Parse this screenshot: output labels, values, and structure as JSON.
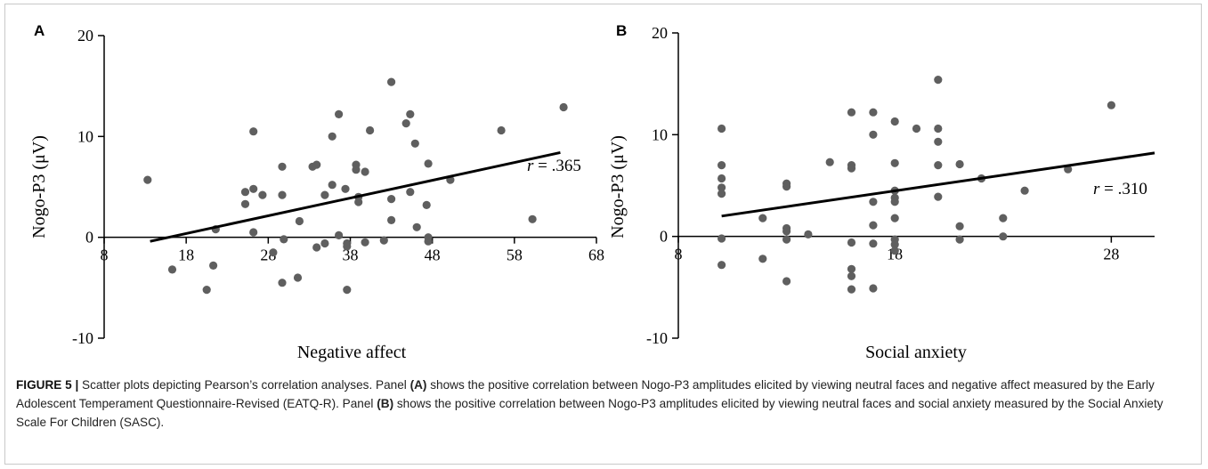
{
  "chart_data": [
    {
      "type": "scatter",
      "panel_label": "A",
      "xlabel": "Negative affect",
      "ylabel": "Nogo-P3 (μV)",
      "xlim": [
        8,
        68
      ],
      "ylim": [
        -10,
        20
      ],
      "x_ticks": [
        "8",
        "18",
        "28",
        "38",
        "48",
        "58",
        "68"
      ],
      "y_ticks": [
        "-10",
        "0",
        "10",
        "20"
      ],
      "annotation": {
        "r_symbol": "r",
        "r_value": "= .365"
      },
      "trendline": {
        "x": [
          13.6,
          63.6
        ],
        "y": [
          -0.4,
          8.4
        ]
      },
      "points": [
        [
          13.3,
          5.7
        ],
        [
          16.3,
          -3.2
        ],
        [
          20.5,
          -5.2
        ],
        [
          21.3,
          -2.8
        ],
        [
          21.6,
          0.8
        ],
        [
          25.2,
          4.5
        ],
        [
          25.2,
          3.3
        ],
        [
          26.2,
          4.8
        ],
        [
          26.2,
          10.5
        ],
        [
          26.2,
          0.5
        ],
        [
          27.3,
          4.2
        ],
        [
          28.6,
          -1.5
        ],
        [
          29.7,
          7.0
        ],
        [
          29.7,
          4.2
        ],
        [
          29.7,
          -4.5
        ],
        [
          29.9,
          -0.2
        ],
        [
          31.6,
          -4.0
        ],
        [
          31.8,
          1.6
        ],
        [
          33.4,
          7.0
        ],
        [
          33.9,
          7.2
        ],
        [
          33.9,
          -1.0
        ],
        [
          34.9,
          -0.6
        ],
        [
          34.9,
          4.2
        ],
        [
          35.8,
          10.0
        ],
        [
          35.8,
          5.2
        ],
        [
          36.6,
          12.2
        ],
        [
          36.6,
          0.2
        ],
        [
          37.4,
          4.8
        ],
        [
          37.6,
          -0.6
        ],
        [
          37.6,
          -0.9
        ],
        [
          37.6,
          -5.2
        ],
        [
          38.7,
          7.2
        ],
        [
          38.7,
          6.7
        ],
        [
          39.0,
          4.0
        ],
        [
          39.0,
          3.5
        ],
        [
          39.8,
          6.5
        ],
        [
          39.8,
          -0.5
        ],
        [
          40.4,
          10.6
        ],
        [
          42.1,
          -0.3
        ],
        [
          43.0,
          15.4
        ],
        [
          43.0,
          3.8
        ],
        [
          43.0,
          1.7
        ],
        [
          44.8,
          11.3
        ],
        [
          45.3,
          12.2
        ],
        [
          45.3,
          4.5
        ],
        [
          45.9,
          9.3
        ],
        [
          46.1,
          1.0
        ],
        [
          47.3,
          3.2
        ],
        [
          47.5,
          7.3
        ],
        [
          47.5,
          -0.4
        ],
        [
          47.5,
          0.0
        ],
        [
          50.2,
          5.7
        ],
        [
          56.4,
          10.6
        ],
        [
          60.2,
          1.8
        ],
        [
          64.0,
          12.9
        ]
      ]
    },
    {
      "type": "scatter",
      "panel_label": "B",
      "xlabel": "Social anxiety",
      "ylabel": "Nogo-P3 (μV)",
      "xlim": [
        8,
        30
      ],
      "ylim": [
        -10,
        20
      ],
      "x_ticks": [
        "8",
        "18",
        "28"
      ],
      "y_ticks": [
        "-10",
        "0",
        "10",
        "20"
      ],
      "annotation": {
        "r_symbol": "r",
        "r_value": "= .310"
      },
      "trendline": {
        "x": [
          10,
          30
        ],
        "y": [
          2.0,
          8.2
        ]
      },
      "points": [
        [
          10.0,
          10.6
        ],
        [
          10.0,
          7.0
        ],
        [
          10.0,
          5.7
        ],
        [
          10.0,
          4.8
        ],
        [
          10.0,
          4.2
        ],
        [
          10.0,
          -0.2
        ],
        [
          10.0,
          -2.8
        ],
        [
          11.9,
          1.8
        ],
        [
          11.9,
          -2.2
        ],
        [
          13.0,
          5.2
        ],
        [
          13.0,
          4.9
        ],
        [
          13.0,
          0.8
        ],
        [
          13.0,
          0.5
        ],
        [
          13.0,
          -0.3
        ],
        [
          13.0,
          -4.4
        ],
        [
          14.0,
          0.2
        ],
        [
          15.0,
          7.3
        ],
        [
          16.0,
          12.2
        ],
        [
          16.0,
          7.0
        ],
        [
          16.0,
          6.7
        ],
        [
          16.0,
          -0.6
        ],
        [
          16.0,
          -3.2
        ],
        [
          16.0,
          -3.9
        ],
        [
          16.0,
          -5.2
        ],
        [
          17.0,
          12.2
        ],
        [
          17.0,
          10.0
        ],
        [
          17.0,
          3.4
        ],
        [
          17.0,
          1.1
        ],
        [
          17.0,
          -0.7
        ],
        [
          17.0,
          -5.1
        ],
        [
          18.0,
          11.3
        ],
        [
          18.0,
          7.2
        ],
        [
          18.0,
          4.5
        ],
        [
          18.0,
          3.8
        ],
        [
          18.0,
          3.4
        ],
        [
          18.0,
          1.8
        ],
        [
          18.0,
          -0.3
        ],
        [
          18.0,
          -0.8
        ],
        [
          18.0,
          -1.4
        ],
        [
          19.0,
          10.6
        ],
        [
          20.0,
          15.4
        ],
        [
          20.0,
          10.6
        ],
        [
          20.0,
          9.3
        ],
        [
          20.0,
          7.0
        ],
        [
          20.0,
          3.9
        ],
        [
          21.0,
          7.1
        ],
        [
          21.0,
          1.0
        ],
        [
          21.0,
          -0.3
        ],
        [
          22.0,
          5.7
        ],
        [
          23.0,
          1.8
        ],
        [
          23.0,
          0.0
        ],
        [
          24.0,
          4.5
        ],
        [
          26.0,
          6.6
        ],
        [
          28.0,
          12.9
        ]
      ]
    }
  ],
  "caption": {
    "figure_label": "FIGURE 5 |",
    "part1": " Scatter plots depicting Pearson’s correlation analyses. Panel ",
    "panel_a": "(A)",
    "part2": " shows the positive correlation between Nogo-P3 amplitudes elicited by viewing neutral faces and negative affect measured by the Early Adolescent Temperament Questionnaire-Revised (EATQ-R). Panel ",
    "panel_b": "(B)",
    "part3": " shows the positive correlation between Nogo-P3 amplitudes elicited by viewing neutral faces and social anxiety measured by the Social Anxiety Scale For Children (SASC)."
  },
  "colors": {
    "point": "#5f5f5f",
    "line": "#000000",
    "axis": "#000000"
  }
}
